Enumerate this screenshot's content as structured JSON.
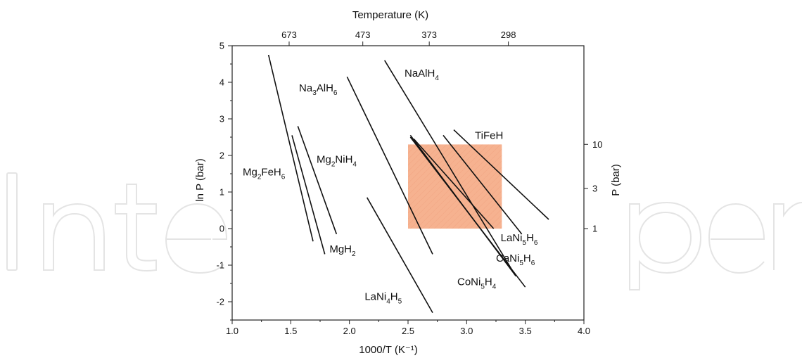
{
  "chart_data": {
    "type": "line",
    "title": "",
    "xlabel": "1000/T (K⁻¹)",
    "ylabel": "ln P (bar)",
    "top_xlabel": "Temperature (K)",
    "right_ylabel": "P (bar)",
    "xlim": [
      1.0,
      4.0
    ],
    "ylim": [
      -2.5,
      5.0
    ],
    "x_ticks": [
      "1.0",
      "1.5",
      "2.0",
      "2.5",
      "3.0",
      "3.5",
      "4.0"
    ],
    "y_ticks": [
      "-2",
      "-1",
      "0",
      "1",
      "2",
      "3",
      "4",
      "5"
    ],
    "top_ticks": [
      {
        "label": "673",
        "temperature_K": 673
      },
      {
        "label": "473",
        "temperature_K": 473
      },
      {
        "label": "373",
        "temperature_K": 373
      },
      {
        "label": "298",
        "temperature_K": 298
      }
    ],
    "right_ticks": [
      {
        "label": "1",
        "pressure_bar": 1
      },
      {
        "label": "3",
        "pressure_bar": 3
      },
      {
        "label": "10",
        "pressure_bar": 10
      }
    ],
    "grid": false,
    "legend": "none",
    "highlight_region": {
      "x": [
        2.5,
        3.3
      ],
      "y": [
        0.0,
        2.3
      ],
      "color": "#f4a47c"
    },
    "series": [
      {
        "name": "Mg₂FeH₆",
        "label_parts": [
          [
            "Mg",
            ""
          ],
          [
            "2",
            "sub"
          ],
          [
            "FeH",
            ""
          ],
          [
            "6",
            "sub"
          ]
        ],
        "x": [
          1.31,
          1.69
        ],
        "y": [
          4.75,
          -0.35
        ]
      },
      {
        "name": "Mg₂NiH₄",
        "label_parts": [
          [
            "Mg",
            ""
          ],
          [
            "2",
            "sub"
          ],
          [
            "NiH",
            ""
          ],
          [
            "4",
            "sub"
          ]
        ],
        "x": [
          1.56,
          1.89
        ],
        "y": [
          2.8,
          -0.15
        ]
      },
      {
        "name": "MgH₂",
        "label_parts": [
          [
            "MgH",
            ""
          ],
          [
            "2",
            "sub"
          ]
        ],
        "x": [
          1.51,
          1.79
        ],
        "y": [
          2.55,
          -0.7
        ]
      },
      {
        "name": "Na₃AlH₆",
        "label_parts": [
          [
            "Na",
            ""
          ],
          [
            "3",
            "sub"
          ],
          [
            "AlH",
            ""
          ],
          [
            "6",
            "sub"
          ]
        ],
        "x": [
          1.98,
          2.71
        ],
        "y": [
          4.15,
          -0.7
        ]
      },
      {
        "name": "NaAlH₄",
        "label_parts": [
          [
            "NaAlH",
            ""
          ],
          [
            "4",
            "sub"
          ]
        ],
        "x": [
          2.3,
          3.4
        ],
        "y": [
          4.6,
          -1.2
        ]
      },
      {
        "name": "LaNi₄H₅",
        "label_parts": [
          [
            "LaNi",
            ""
          ],
          [
            "4",
            "sub"
          ],
          [
            "H",
            ""
          ],
          [
            "5",
            "sub"
          ]
        ],
        "x": [
          2.15,
          2.71
        ],
        "y": [
          0.85,
          -2.3
        ]
      },
      {
        "name": "CoNi₅H₄",
        "label_parts": [
          [
            "CoNi",
            ""
          ],
          [
            "5",
            "sub"
          ],
          [
            "H",
            ""
          ],
          [
            "4",
            "sub"
          ]
        ],
        "x": [
          2.52,
          3.5
        ],
        "y": [
          2.5,
          -1.6
        ]
      },
      {
        "name": "CaNi₅H₆",
        "label_parts": [
          [
            "CaNi",
            ""
          ],
          [
            "5",
            "sub"
          ],
          [
            "H",
            ""
          ],
          [
            "6",
            "sub"
          ]
        ],
        "x": [
          2.52,
          3.42
        ],
        "y": [
          2.55,
          -1.3
        ]
      },
      {
        "name": "LaNi₅H₆",
        "label_parts": [
          [
            "LaNi",
            ""
          ],
          [
            "5",
            "sub"
          ],
          [
            "H",
            ""
          ],
          [
            "6",
            "sub"
          ]
        ],
        "x": [
          2.8,
          3.47
        ],
        "y": [
          2.55,
          -0.15
        ]
      },
      {
        "name": "TiFeH",
        "label_parts": [
          [
            "TiFeH",
            ""
          ]
        ],
        "x": [
          2.89,
          3.7
        ],
        "y": [
          2.7,
          0.25
        ]
      },
      {
        "name": "",
        "label_parts": [],
        "x": [
          2.55,
          3.23
        ],
        "y": [
          2.45,
          0.0
        ]
      }
    ],
    "labels": [
      {
        "series": 0,
        "at": [
          1.09,
          1.45
        ]
      },
      {
        "series": 1,
        "at": [
          1.72,
          1.8
        ]
      },
      {
        "series": 2,
        "at": [
          1.83,
          -0.65
        ]
      },
      {
        "series": 3,
        "at": [
          1.57,
          3.75
        ]
      },
      {
        "series": 4,
        "at": [
          2.47,
          4.15
        ]
      },
      {
        "series": 5,
        "at": [
          2.13,
          -1.95
        ]
      },
      {
        "series": 6,
        "at": [
          2.92,
          -1.55
        ]
      },
      {
        "series": 7,
        "at": [
          3.25,
          -0.9
        ]
      },
      {
        "series": 8,
        "at": [
          3.29,
          -0.35
        ]
      },
      {
        "series": 9,
        "at": [
          3.07,
          2.45
        ]
      }
    ]
  },
  "watermark": {
    "text": "IntechOpen",
    "visible": true
  }
}
